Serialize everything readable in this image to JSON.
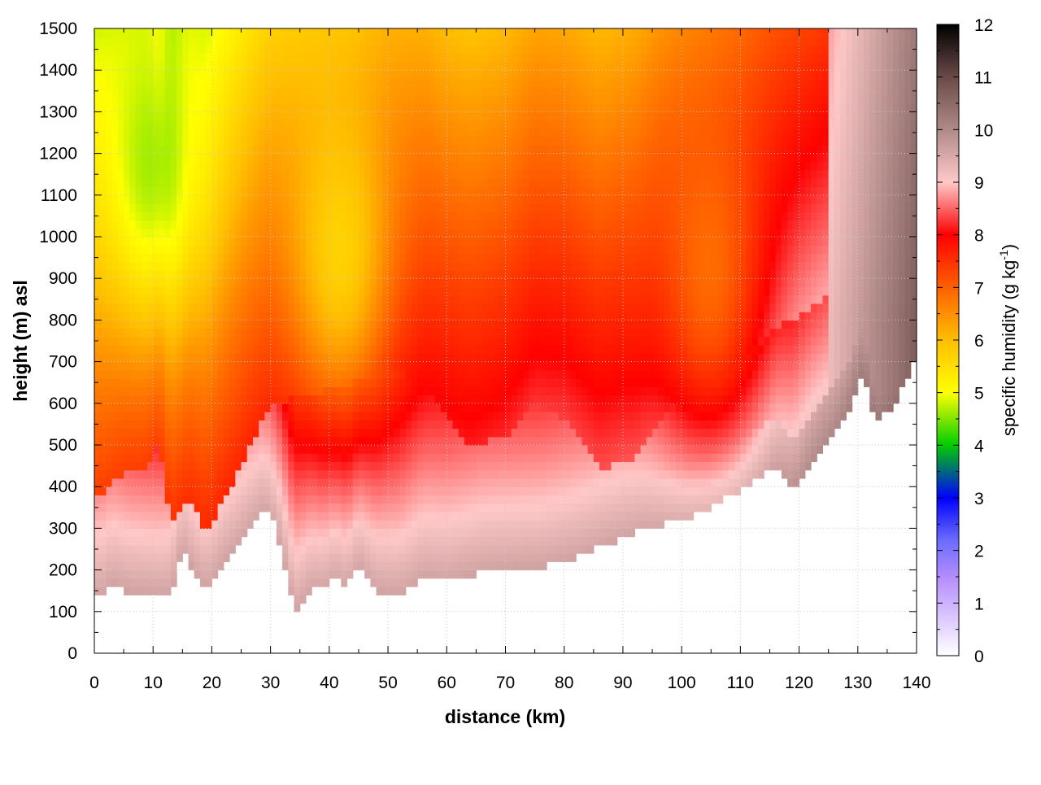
{
  "chart_data": {
    "type": "heatmap",
    "title": "",
    "xlabel": "distance (km)",
    "ylabel": "height (m) asl",
    "xlim": [
      0,
      140
    ],
    "ylim": [
      0,
      1500
    ],
    "x_ticks": [
      0,
      10,
      20,
      30,
      40,
      50,
      60,
      70,
      80,
      90,
      100,
      110,
      120,
      130,
      140
    ],
    "x_tick_labels": [
      "0",
      "10",
      "20",
      "30",
      "40",
      "50",
      "60",
      "70",
      "80",
      "90",
      "100",
      "110",
      "120",
      "130",
      "140"
    ],
    "y_ticks": [
      0,
      100,
      200,
      300,
      400,
      500,
      600,
      700,
      800,
      900,
      1000,
      1100,
      1200,
      1300,
      1400,
      1500
    ],
    "y_tick_labels": [
      "0",
      "100",
      "200",
      "300",
      "400",
      "500",
      "600",
      "700",
      "800",
      "900",
      "1000",
      "1100",
      "1200",
      "1300",
      "1400",
      "1500"
    ],
    "grid": true,
    "colorbar": {
      "label_main": "specific humidity (g kg",
      "label_sup": "-1",
      "label_close": ")",
      "range": [
        0,
        12
      ],
      "ticks": [
        0,
        1,
        2,
        3,
        4,
        5,
        6,
        7,
        8,
        9,
        10,
        11,
        12
      ],
      "tick_labels": [
        "0",
        "1",
        "2",
        "3",
        "4",
        "5",
        "6",
        "7",
        "8",
        "9",
        "10",
        "11",
        "12"
      ],
      "stops": [
        {
          "value": 0,
          "color": "#ffffff"
        },
        {
          "value": 1.5,
          "color": "#b48cff"
        },
        {
          "value": 2.2,
          "color": "#6b6bff"
        },
        {
          "value": 3,
          "color": "#0000ff"
        },
        {
          "value": 4,
          "color": "#00cc00"
        },
        {
          "value": 5,
          "color": "#ffff00"
        },
        {
          "value": 6,
          "color": "#ffbe00"
        },
        {
          "value": 7,
          "color": "#ff6000"
        },
        {
          "value": 8,
          "color": "#ff0000"
        },
        {
          "value": 9,
          "color": "#ffc8c8"
        },
        {
          "value": 10,
          "color": "#b08a88"
        },
        {
          "value": 11,
          "color": "#6a4a48"
        },
        {
          "value": 12,
          "color": "#000000"
        }
      ]
    },
    "terrain_top_m": [
      [
        0,
        140
      ],
      [
        1,
        130
      ],
      [
        3,
        165
      ],
      [
        6,
        145
      ],
      [
        9,
        140
      ],
      [
        11,
        135
      ],
      [
        13,
        140
      ],
      [
        15,
        250
      ],
      [
        17,
        195
      ],
      [
        19,
        150
      ],
      [
        22,
        215
      ],
      [
        26,
        290
      ],
      [
        29,
        345
      ],
      [
        31,
        300
      ],
      [
        33,
        175
      ],
      [
        34,
        98
      ],
      [
        35,
        110
      ],
      [
        37,
        155
      ],
      [
        39,
        150
      ],
      [
        41,
        185
      ],
      [
        43,
        155
      ],
      [
        45,
        220
      ],
      [
        48,
        150
      ],
      [
        52,
        140
      ],
      [
        56,
        180
      ],
      [
        60,
        170
      ],
      [
        66,
        195
      ],
      [
        70,
        200
      ],
      [
        76,
        205
      ],
      [
        82,
        230
      ],
      [
        88,
        265
      ],
      [
        94,
        300
      ],
      [
        100,
        318
      ],
      [
        104,
        345
      ],
      [
        108,
        375
      ],
      [
        112,
        410
      ],
      [
        116,
        450
      ],
      [
        119,
        400
      ],
      [
        122,
        460
      ],
      [
        126,
        520
      ],
      [
        128,
        570
      ],
      [
        130,
        650
      ],
      [
        131,
        675
      ],
      [
        133,
        550
      ],
      [
        135,
        580
      ],
      [
        137,
        620
      ],
      [
        140,
        710
      ]
    ],
    "moist_layer_top_m": [
      [
        0,
        370
      ],
      [
        5,
        430
      ],
      [
        9,
        440
      ],
      [
        11,
        520
      ],
      [
        13,
        300
      ],
      [
        16,
        375
      ],
      [
        19,
        290
      ],
      [
        24,
        420
      ],
      [
        30,
        600
      ],
      [
        36,
        620
      ],
      [
        44,
        650
      ],
      [
        50,
        690
      ],
      [
        56,
        650
      ],
      [
        60,
        560
      ],
      [
        64,
        500
      ],
      [
        70,
        520
      ],
      [
        75,
        600
      ],
      [
        80,
        560
      ],
      [
        86,
        440
      ],
      [
        92,
        470
      ],
      [
        96,
        560
      ],
      [
        100,
        610
      ],
      [
        104,
        640
      ],
      [
        110,
        700
      ],
      [
        116,
        780
      ],
      [
        122,
        830
      ],
      [
        126,
        870
      ],
      [
        128,
        900
      ]
    ],
    "dry_core_centers": [
      {
        "x": 10,
        "y": 1150,
        "value": 4.2
      },
      {
        "x": 42,
        "y": 950,
        "value": 5.2
      },
      {
        "x": 105,
        "y": 900,
        "value": 6.5
      }
    ],
    "data_top_m": 1500
  }
}
